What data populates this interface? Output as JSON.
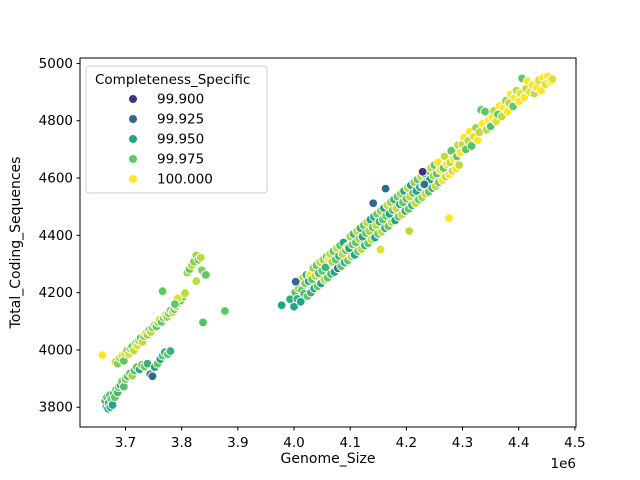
{
  "chart_data": {
    "type": "scatter",
    "title": "",
    "xlabel": "Genome_Size",
    "ylabel": "Total_Coding_Sequences",
    "x_offset_label": "1e6",
    "x_unit": 1000000,
    "xlim": [
      3.619,
      4.502
    ],
    "ylim": [
      3731,
      5019
    ],
    "x_ticks": [
      3.7,
      3.8,
      3.9,
      4.0,
      4.1,
      4.2,
      4.3,
      4.4,
      4.5
    ],
    "x_tick_labels": [
      "3.7",
      "3.8",
      "3.9",
      "4.0",
      "4.1",
      "4.2",
      "4.3",
      "4.4",
      "4.5"
    ],
    "y_ticks": [
      3800,
      4000,
      4200,
      4400,
      4600,
      4800,
      5000
    ],
    "y_tick_labels": [
      "3800",
      "4000",
      "4200",
      "4400",
      "4600",
      "4800",
      "5000"
    ],
    "grid": false,
    "marker": {
      "radius": 4.4,
      "edge_color": "#ffffff",
      "edge_width": 1
    },
    "legend": {
      "title": "Completeness_Specific",
      "position": "upper-left",
      "entries": [
        {
          "label": "99.900",
          "value": 99.9,
          "color": "#46327e"
        },
        {
          "label": "99.925",
          "value": 99.925,
          "color": "#31688e"
        },
        {
          "label": "99.950",
          "value": 99.95,
          "color": "#21a585"
        },
        {
          "label": "99.975",
          "value": 99.975,
          "color": "#5ec962"
        },
        {
          "label": "100.000",
          "value": 100.0,
          "color": "#fde725"
        }
      ]
    },
    "hue": {
      "name": "Completeness_Specific",
      "min": 99.9,
      "max": 100.0,
      "palette": "viridis"
    },
    "points": [
      [
        3.664,
        3822,
        99.96
      ],
      [
        3.666,
        3800,
        99.95
      ],
      [
        3.667,
        3835,
        99.975
      ],
      [
        3.669,
        3795,
        99.95
      ],
      [
        3.67,
        3815,
        99.965
      ],
      [
        3.672,
        3842,
        99.97
      ],
      [
        3.673,
        3800,
        99.955
      ],
      [
        3.675,
        3828,
        99.975
      ],
      [
        3.677,
        3808,
        99.95
      ],
      [
        3.679,
        3848,
        99.96
      ],
      [
        3.681,
        3835,
        99.975
      ],
      [
        3.683,
        3862,
        99.98
      ],
      [
        3.686,
        3852,
        99.965
      ],
      [
        3.688,
        3870,
        99.975
      ],
      [
        3.691,
        3878,
        99.955
      ],
      [
        3.694,
        3890,
        99.975
      ],
      [
        3.697,
        3872,
        99.97
      ],
      [
        3.7,
        3898,
        99.98
      ],
      [
        3.704,
        3908,
        99.965
      ],
      [
        3.708,
        3918,
        99.975
      ],
      [
        3.712,
        3910,
        99.985
      ],
      [
        3.716,
        3928,
        99.97
      ],
      [
        3.72,
        3940,
        99.975
      ],
      [
        3.725,
        3932,
        99.955
      ],
      [
        3.729,
        3948,
        99.98
      ],
      [
        3.734,
        3942,
        99.975
      ],
      [
        3.739,
        3952,
        99.96
      ],
      [
        3.744,
        3915,
        99.94
      ],
      [
        3.748,
        3908,
        99.925
      ],
      [
        3.752,
        3940,
        99.95
      ],
      [
        3.757,
        3952,
        99.975
      ],
      [
        3.762,
        3968,
        99.95
      ],
      [
        3.766,
        3980,
        99.97
      ],
      [
        3.77,
        3992,
        99.955
      ],
      [
        3.775,
        3985,
        99.975
      ],
      [
        3.78,
        3996,
        99.96
      ],
      [
        3.659,
        3982,
        100
      ],
      [
        3.682,
        3958,
        99.99
      ],
      [
        3.686,
        3952,
        99.98
      ],
      [
        3.69,
        3972,
        99.985
      ],
      [
        3.694,
        3980,
        99.995
      ],
      [
        3.697,
        3962,
        99.975
      ],
      [
        3.7,
        3988,
        99.99
      ],
      [
        3.703,
        3998,
        99.98
      ],
      [
        3.706,
        3985,
        99.995
      ],
      [
        3.709,
        4005,
        99.985
      ],
      [
        3.712,
        4012,
        99.975
      ],
      [
        3.715,
        3998,
        99.99
      ],
      [
        3.718,
        4022,
        99.98
      ],
      [
        3.721,
        4015,
        99.995
      ],
      [
        3.724,
        4032,
        99.985
      ],
      [
        3.727,
        4042,
        99.975
      ],
      [
        3.73,
        4028,
        99.99
      ],
      [
        3.733,
        4048,
        99.98
      ],
      [
        3.736,
        4058,
        99.995
      ],
      [
        3.739,
        4052,
        99.985
      ],
      [
        3.742,
        4068,
        99.975
      ],
      [
        3.745,
        4062,
        99.99
      ],
      [
        3.748,
        4078,
        99.98
      ],
      [
        3.752,
        4088,
        99.99
      ],
      [
        3.755,
        4082,
        99.975
      ],
      [
        3.758,
        4095,
        99.985
      ],
      [
        3.761,
        4105,
        99.99
      ],
      [
        3.764,
        4098,
        99.975
      ],
      [
        3.768,
        4112,
        99.98
      ],
      [
        3.771,
        4122,
        99.995
      ],
      [
        3.774,
        4115,
        99.985
      ],
      [
        3.777,
        4128,
        99.975
      ],
      [
        3.78,
        4138,
        99.98
      ],
      [
        3.784,
        4132,
        99.99
      ],
      [
        3.787,
        4142,
        99.975
      ],
      [
        3.79,
        4152,
        99.985
      ],
      [
        3.794,
        4162,
        99.99
      ],
      [
        3.798,
        4172,
        99.975
      ],
      [
        3.802,
        4185,
        99.98
      ],
      [
        3.806,
        4198,
        99.99
      ],
      [
        3.81,
        4270,
        99.985
      ],
      [
        3.814,
        4282,
        99.975
      ],
      [
        3.818,
        4295,
        99.99
      ],
      [
        3.822,
        4308,
        99.98
      ],
      [
        3.826,
        4330,
        99.985
      ],
      [
        3.83,
        4315,
        99.975
      ],
      [
        3.834,
        4322,
        99.99
      ],
      [
        3.766,
        4205,
        99.975
      ],
      [
        3.836,
        4278,
        99.98
      ],
      [
        3.843,
        4262,
        99.975
      ],
      [
        3.826,
        4240,
        99.99
      ],
      [
        3.793,
        4180,
        99.995
      ],
      [
        3.788,
        4160,
        99.975
      ],
      [
        3.838,
        4096,
        99.97
      ],
      [
        3.877,
        4136,
        99.975
      ],
      [
        3.978,
        4156,
        99.95
      ],
      [
        3.993,
        4177,
        99.955
      ],
      [
        4.0,
        4151,
        99.95
      ],
      [
        4.002,
        4201,
        99.975
      ],
      [
        4.004,
        4231,
        99.99
      ],
      [
        4.006,
        4178,
        99.96
      ],
      [
        4.008,
        4215,
        99.985
      ],
      [
        4.01,
        4245,
        99.975
      ],
      [
        4.012,
        4168,
        99.95
      ],
      [
        4.014,
        4208,
        99.975
      ],
      [
        4.016,
        4252,
        99.99
      ],
      [
        4.018,
        4196,
        99.965
      ],
      [
        4.02,
        4232,
        99.98
      ],
      [
        4.022,
        4262,
        99.955
      ],
      [
        4.024,
        4188,
        99.975
      ],
      [
        4.026,
        4240,
        99.95
      ],
      [
        4.028,
        4262,
        100
      ],
      [
        4.03,
        4200,
        99.96
      ],
      [
        4.032,
        4246,
        99.975
      ],
      [
        4.034,
        4286,
        99.985
      ],
      [
        4.036,
        4215,
        99.95
      ],
      [
        4.038,
        4258,
        99.99
      ],
      [
        4.04,
        4295,
        99.975
      ],
      [
        4.042,
        4222,
        99.975
      ],
      [
        4.044,
        4268,
        99.965
      ],
      [
        4.046,
        4306,
        99.99
      ],
      [
        4.048,
        4232,
        99.95
      ],
      [
        4.05,
        4276,
        99.975
      ],
      [
        4.052,
        4315,
        99.985
      ],
      [
        4.054,
        4245,
        99.99
      ],
      [
        4.056,
        4288,
        99.96
      ],
      [
        4.058,
        4325,
        99.975
      ],
      [
        4.06,
        4252,
        99.975
      ],
      [
        4.062,
        4315,
        100
      ],
      [
        4.064,
        4335,
        99.99
      ],
      [
        4.066,
        4265,
        99.965
      ],
      [
        4.068,
        4308,
        99.985
      ],
      [
        4.07,
        4345,
        99.975
      ],
      [
        4.072,
        4272,
        99.95
      ],
      [
        4.074,
        4315,
        99.975
      ],
      [
        4.076,
        4355,
        99.99
      ],
      [
        4.078,
        4285,
        99.93
      ],
      [
        4.08,
        4328,
        99.96
      ],
      [
        4.082,
        4365,
        99.975
      ],
      [
        4.084,
        4292,
        99.975
      ],
      [
        4.086,
        4335,
        99.99
      ],
      [
        4.088,
        4375,
        99.95
      ],
      [
        4.09,
        4305,
        99.96
      ],
      [
        4.092,
        4348,
        99.975
      ],
      [
        4.095,
        4360,
        100
      ],
      [
        4.096,
        4312,
        99.975
      ],
      [
        4.098,
        4355,
        99.95
      ],
      [
        4.1,
        4395,
        99.985
      ],
      [
        4.102,
        4325,
        99.99
      ],
      [
        4.104,
        4368,
        99.975
      ],
      [
        4.106,
        4405,
        99.96
      ],
      [
        4.108,
        4332,
        99.95
      ],
      [
        4.11,
        4375,
        99.975
      ],
      [
        4.112,
        4415,
        99.99
      ],
      [
        4.114,
        4345,
        99.975
      ],
      [
        4.116,
        4388,
        99.985
      ],
      [
        4.118,
        4425,
        99.96
      ],
      [
        4.12,
        4352,
        99.99
      ],
      [
        4.122,
        4395,
        99.95
      ],
      [
        4.124,
        4435,
        99.975
      ],
      [
        4.126,
        4365,
        99.96
      ],
      [
        4.128,
        4408,
        99.975
      ],
      [
        4.13,
        4445,
        99.99
      ],
      [
        4.132,
        4372,
        99.975
      ],
      [
        4.134,
        4415,
        99.985
      ],
      [
        4.136,
        4455,
        99.95
      ],
      [
        4.138,
        4385,
        99.99
      ],
      [
        4.14,
        4428,
        99.975
      ],
      [
        4.142,
        4465,
        99.96
      ],
      [
        4.144,
        4392,
        99.95
      ],
      [
        4.146,
        4435,
        99.99
      ],
      [
        4.148,
        4475,
        99.975
      ],
      [
        4.15,
        4405,
        99.975
      ],
      [
        4.152,
        4448,
        99.96
      ],
      [
        4.154,
        4485,
        99.985
      ],
      [
        4.156,
        4412,
        99.99
      ],
      [
        4.158,
        4455,
        99.975
      ],
      [
        4.16,
        4495,
        99.95
      ],
      [
        4.162,
        4425,
        99.96
      ],
      [
        4.164,
        4468,
        99.975
      ],
      [
        4.166,
        4505,
        99.99
      ],
      [
        4.168,
        4432,
        99.975
      ],
      [
        4.17,
        4475,
        99.95
      ],
      [
        4.172,
        4515,
        99.985
      ],
      [
        4.174,
        4445,
        99.99
      ],
      [
        4.176,
        4488,
        99.975
      ],
      [
        4.178,
        4525,
        99.96
      ],
      [
        4.18,
        4452,
        99.95
      ],
      [
        4.182,
        4495,
        99.99
      ],
      [
        4.184,
        4535,
        99.975
      ],
      [
        4.186,
        4465,
        99.975
      ],
      [
        4.188,
        4508,
        99.96
      ],
      [
        4.19,
        4545,
        99.985
      ],
      [
        4.192,
        4472,
        99.99
      ],
      [
        4.194,
        4515,
        99.975
      ],
      [
        4.196,
        4555,
        99.95
      ],
      [
        4.198,
        4485,
        99.96
      ],
      [
        4.2,
        4528,
        99.975
      ],
      [
        4.202,
        4565,
        99.99
      ],
      [
        4.204,
        4492,
        99.975
      ],
      [
        4.206,
        4535,
        99.99
      ],
      [
        4.208,
        4575,
        99.95
      ],
      [
        4.21,
        4505,
        99.96
      ],
      [
        4.212,
        4548,
        99.975
      ],
      [
        4.214,
        4585,
        99.985
      ],
      [
        4.216,
        4512,
        99.99
      ],
      [
        4.218,
        4555,
        99.95
      ],
      [
        4.22,
        4595,
        99.975
      ],
      [
        4.222,
        4525,
        99.975
      ],
      [
        4.224,
        4568,
        99.96
      ],
      [
        4.226,
        4605,
        99.99
      ],
      [
        4.228,
        4532,
        99.985
      ],
      [
        4.23,
        4575,
        99.975
      ],
      [
        4.232,
        4615,
        99.95
      ],
      [
        4.234,
        4545,
        99.99
      ],
      [
        4.236,
        4588,
        99.975
      ],
      [
        4.238,
        4625,
        99.96
      ],
      [
        4.24,
        4552,
        99.975
      ],
      [
        4.242,
        4595,
        99.95
      ],
      [
        4.244,
        4635,
        99.99
      ],
      [
        4.246,
        4565,
        99.96
      ],
      [
        4.248,
        4608,
        99.985
      ],
      [
        4.25,
        4645,
        99.975
      ],
      [
        4.252,
        4572,
        99.99
      ],
      [
        4.254,
        4615,
        99.975
      ],
      [
        4.256,
        4655,
        100
      ],
      [
        4.258,
        4585,
        99.975
      ],
      [
        4.26,
        4628,
        100
      ],
      [
        4.264,
        4592,
        100
      ],
      [
        4.266,
        4635,
        99.975
      ],
      [
        4.268,
        4675,
        99.99
      ],
      [
        4.27,
        4605,
        99.99
      ],
      [
        4.272,
        4648,
        100
      ],
      [
        4.276,
        4612,
        100
      ],
      [
        4.278,
        4655,
        99.99
      ],
      [
        4.28,
        4695,
        99.975
      ],
      [
        4.282,
        4625,
        99.99
      ],
      [
        4.284,
        4668,
        100
      ],
      [
        4.288,
        4632,
        100
      ],
      [
        4.29,
        4675,
        99.975
      ],
      [
        4.292,
        4715,
        99.99
      ],
      [
        4.294,
        4645,
        99.99
      ],
      [
        4.296,
        4688,
        100
      ],
      [
        4.3,
        4718,
        99.99
      ],
      [
        4.303,
        4742,
        100
      ],
      [
        4.306,
        4700,
        99.975
      ],
      [
        4.31,
        4730,
        99.99
      ],
      [
        4.313,
        4762,
        100
      ],
      [
        4.316,
        4712,
        99.97
      ],
      [
        4.32,
        4745,
        99.995
      ],
      [
        4.324,
        4775,
        99.985
      ],
      [
        4.327,
        4732,
        100
      ],
      [
        4.33,
        4760,
        99.99
      ],
      [
        4.333,
        4838,
        99.975
      ],
      [
        4.336,
        4790,
        100
      ],
      [
        4.34,
        4832,
        99.975
      ],
      [
        4.343,
        4768,
        99.99
      ],
      [
        4.346,
        4800,
        100
      ],
      [
        4.35,
        4780,
        99.97
      ],
      [
        4.353,
        4812,
        100
      ],
      [
        4.356,
        4835,
        99.99
      ],
      [
        4.36,
        4798,
        99.995
      ],
      [
        4.363,
        4822,
        99.975
      ],
      [
        4.366,
        4852,
        100
      ],
      [
        4.37,
        4815,
        99.99
      ],
      [
        4.373,
        4845,
        100
      ],
      [
        4.377,
        4870,
        99.985
      ],
      [
        4.38,
        4832,
        100
      ],
      [
        4.383,
        4862,
        99.99
      ],
      [
        4.386,
        4892,
        100
      ],
      [
        4.39,
        4850,
        99.975
      ],
      [
        4.393,
        4880,
        100
      ],
      [
        4.396,
        4905,
        99.99
      ],
      [
        4.4,
        4868,
        100
      ],
      [
        4.403,
        4895,
        99.995
      ],
      [
        4.406,
        4948,
        99.975
      ],
      [
        4.41,
        4882,
        100
      ],
      [
        4.413,
        4912,
        99.99
      ],
      [
        4.416,
        4938,
        100
      ],
      [
        4.42,
        4900,
        99.995
      ],
      [
        4.424,
        4925,
        100
      ],
      [
        4.428,
        4895,
        99.99
      ],
      [
        4.432,
        4915,
        100
      ],
      [
        4.436,
        4942,
        99.995
      ],
      [
        4.44,
        4905,
        100
      ],
      [
        4.444,
        4950,
        100
      ],
      [
        4.448,
        4928,
        99.995
      ],
      [
        4.452,
        4955,
        100
      ],
      [
        4.456,
        4938,
        100
      ],
      [
        4.46,
        4945,
        99.995
      ],
      [
        4.154,
        4350,
        99.995
      ],
      [
        4.205,
        4415,
        99.99
      ],
      [
        4.276,
        4460,
        100
      ],
      [
        4.003,
        4238,
        99.925
      ],
      [
        4.141,
        4512,
        99.925
      ],
      [
        4.163,
        4563,
        99.925
      ],
      [
        4.232,
        4578,
        99.93
      ],
      [
        4.229,
        4622,
        99.9
      ]
    ]
  },
  "layout_text": {
    "note": ""
  }
}
